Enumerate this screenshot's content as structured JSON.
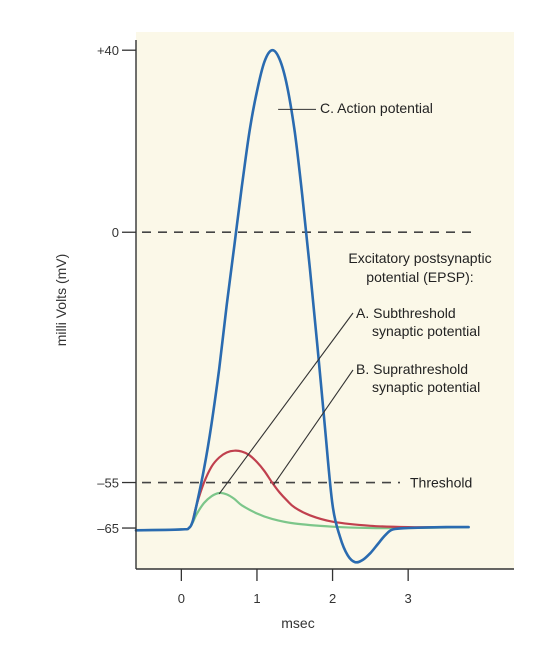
{
  "chart_data": {
    "type": "line",
    "xlabel": "msec",
    "ylabel": "milli Volts (mV)",
    "xlim": [
      -0.6,
      4.4
    ],
    "ylim": [
      -74,
      44
    ],
    "x_ticks": [
      0,
      1,
      2,
      3
    ],
    "y_ticks": [
      {
        "value": 40,
        "label": "+40"
      },
      {
        "value": 0,
        "label": "0"
      },
      {
        "value": -55,
        "label": "–55"
      },
      {
        "value": -65,
        "label": "–65"
      }
    ],
    "reference_lines": [
      {
        "value": 0,
        "label": ""
      },
      {
        "value": -55,
        "label": "Threshold"
      }
    ],
    "annotations": {
      "action": "C.  Action potential",
      "epsp_1": "Excitatory postsynaptic",
      "epsp_2": "potential (EPSP):",
      "a_1": "A.  Subthreshold",
      "a_2": "synaptic potential",
      "b_1": "B.  Suprathreshold",
      "b_2": "synaptic potential"
    },
    "series": [
      {
        "key": "action",
        "color": "#2a6bb0",
        "points": [
          [
            -0.6,
            -65.5
          ],
          [
            0,
            -65.3
          ],
          [
            0.1,
            -65
          ],
          [
            0.15,
            -63.5
          ],
          [
            0.2,
            -60
          ],
          [
            0.3,
            -52
          ],
          [
            0.4,
            -42
          ],
          [
            0.5,
            -30
          ],
          [
            0.6,
            -16
          ],
          [
            0.7,
            -3
          ],
          [
            0.8,
            10
          ],
          [
            0.9,
            22
          ],
          [
            1.0,
            31
          ],
          [
            1.1,
            37.5
          ],
          [
            1.2,
            40
          ],
          [
            1.3,
            38
          ],
          [
            1.4,
            32
          ],
          [
            1.5,
            22
          ],
          [
            1.6,
            8
          ],
          [
            1.7,
            -8
          ],
          [
            1.8,
            -25
          ],
          [
            1.9,
            -43
          ],
          [
            2.0,
            -60
          ],
          [
            2.1,
            -67
          ],
          [
            2.2,
            -71
          ],
          [
            2.3,
            -72.5
          ],
          [
            2.4,
            -72
          ],
          [
            2.5,
            -70.5
          ],
          [
            2.6,
            -68.5
          ],
          [
            2.7,
            -66.5
          ],
          [
            2.8,
            -65.3
          ],
          [
            3.0,
            -65
          ],
          [
            3.5,
            -64.8
          ],
          [
            3.8,
            -64.8
          ]
        ]
      },
      {
        "key": "subthreshold",
        "color": "#7cc68a",
        "points": [
          [
            -0.6,
            -65.5
          ],
          [
            0,
            -65.3
          ],
          [
            0.1,
            -65
          ],
          [
            0.15,
            -63.8
          ],
          [
            0.2,
            -62
          ],
          [
            0.3,
            -59.5
          ],
          [
            0.4,
            -58
          ],
          [
            0.5,
            -57.3
          ],
          [
            0.6,
            -57.6
          ],
          [
            0.7,
            -58.6
          ],
          [
            0.8,
            -60
          ],
          [
            1.0,
            -61.8
          ],
          [
            1.2,
            -63
          ],
          [
            1.5,
            -64
          ],
          [
            2.0,
            -64.7
          ],
          [
            2.5,
            -65
          ],
          [
            3.0,
            -65
          ],
          [
            3.8,
            -64.8
          ]
        ]
      },
      {
        "key": "suprathreshold",
        "color": "#c0404e",
        "points": [
          [
            0.15,
            -63.5
          ],
          [
            0.2,
            -60
          ],
          [
            0.3,
            -55
          ],
          [
            0.4,
            -51.5
          ],
          [
            0.5,
            -49.5
          ],
          [
            0.6,
            -48.4
          ],
          [
            0.7,
            -48
          ],
          [
            0.8,
            -48.2
          ],
          [
            0.9,
            -49
          ],
          [
            1.0,
            -50.5
          ],
          [
            1.1,
            -52.5
          ],
          [
            1.2,
            -55
          ],
          [
            1.3,
            -57.2
          ],
          [
            1.4,
            -59
          ],
          [
            1.5,
            -60.5
          ],
          [
            1.7,
            -62.2
          ],
          [
            2.0,
            -63.6
          ],
          [
            2.5,
            -64.5
          ],
          [
            3.0,
            -64.8
          ],
          [
            3.5,
            -64.8
          ]
        ]
      }
    ]
  }
}
